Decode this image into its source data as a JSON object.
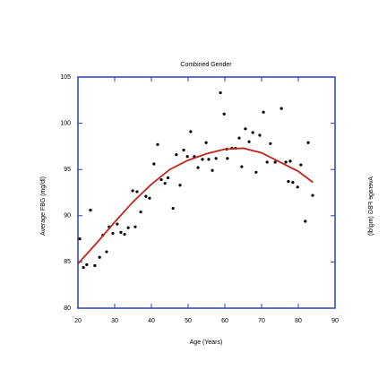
{
  "chart_data": {
    "type": "scatter",
    "title": "Combined Gender",
    "xlabel": "Age (Years)",
    "ylabel": "Average FBG (mg/dl)",
    "xlim": [
      20,
      90
    ],
    "xticks": [
      20,
      30,
      40,
      50,
      60,
      70,
      80,
      90
    ],
    "ylim": [
      80,
      105
    ],
    "yticks": [
      80,
      85,
      90,
      95,
      100,
      105
    ],
    "axis_color": "#2a3fb5",
    "point_color": "#000000",
    "x": [
      20.5,
      21.5,
      22.4,
      23.4,
      24.6,
      25.9,
      26.8,
      27.8,
      28.5,
      29.5,
      30.7,
      31.7,
      32.7,
      33.7,
      34.9,
      35.6,
      36.1,
      37.1,
      38.5,
      39.5,
      40.7,
      41.7,
      42.7,
      43.7,
      44.5,
      45.9,
      46.8,
      47.8,
      48.8,
      49.8,
      50.7,
      51.7,
      52.7,
      53.9,
      54.9,
      55.6,
      56.6,
      57.6,
      58.8,
      59.8,
      60.5,
      60.7,
      61.9,
      62.9,
      63.9,
      64.6,
      65.6,
      66.6,
      67.6,
      68.5,
      69.5,
      70.5,
      71.5,
      72.4,
      73.7,
      75.4,
      76.6,
      77.3,
      77.8,
      78.5,
      79.8,
      80.7,
      81.9,
      82.7,
      83.9
    ],
    "values": [
      87.5,
      84.4,
      84.7,
      90.6,
      84.6,
      85.5,
      87.9,
      86.1,
      88.8,
      88.1,
      89.1,
      88.2,
      88.0,
      88.7,
      92.7,
      88.8,
      92.6,
      90.4,
      92.1,
      91.9,
      95.6,
      97.7,
      93.9,
      93.5,
      94.1,
      90.8,
      96.6,
      93.3,
      97.1,
      96.4,
      99.1,
      96.4,
      95.2,
      96.1,
      97.9,
      96.1,
      94.9,
      96.2,
      103.3,
      101.0,
      97.2,
      96.2,
      97.3,
      97.3,
      98.4,
      95.3,
      99.4,
      98.0,
      99.0,
      94.7,
      98.7,
      101.2,
      95.8,
      97.8,
      95.8,
      101.6,
      95.8,
      93.7,
      95.9,
      93.6,
      93.1,
      95.5,
      89.4,
      97.9,
      92.2
    ],
    "fit": {
      "color": "#c0281c",
      "x": [
        20,
        25,
        30,
        35,
        40,
        45,
        50,
        55,
        60,
        65,
        70,
        75,
        80,
        84
      ],
      "values": [
        84.8,
        87.0,
        89.3,
        91.5,
        93.4,
        95.0,
        96.0,
        96.7,
        97.2,
        97.3,
        96.8,
        95.8,
        94.8,
        93.6
      ]
    }
  }
}
